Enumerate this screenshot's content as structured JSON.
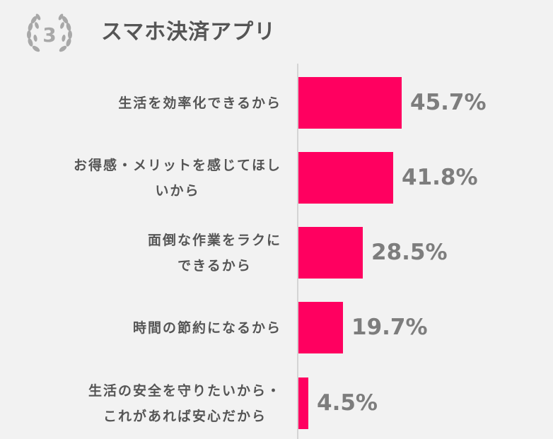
{
  "header": {
    "rank": "3",
    "title": "スマホ決済アプリ"
  },
  "colors": {
    "bar": "#ff0060",
    "background": "#f2f2f2",
    "label_text": "#555555",
    "value_text": "#7d7d7d",
    "badge": "#a8a8a8"
  },
  "chart_data": {
    "type": "bar",
    "orientation": "horizontal",
    "title": "スマホ決済アプリ",
    "categories": [
      "生活を効率化できるから",
      "お得感・メリットを感じてほしいから",
      "面倒な作業をラクにできるから",
      "時間の節約になるから",
      "生活の安全を守りたいから・これがあれば安心だから"
    ],
    "values": [
      45.7,
      41.8,
      28.5,
      19.7,
      4.5
    ],
    "unit": "%",
    "xlabel": "",
    "ylabel": "",
    "grid": false,
    "legend": null
  },
  "rows": [
    {
      "lines": [
        "生活を効率化できるから"
      ],
      "value": 45.7,
      "value_label": "45.7%"
    },
    {
      "lines": [
        "お得感・メリットを感じてほし",
        "いから"
      ],
      "value": 41.8,
      "value_label": "41.8%"
    },
    {
      "lines": [
        "面倒な作業をラクに",
        "できるから"
      ],
      "value": 28.5,
      "value_label": "28.5%"
    },
    {
      "lines": [
        "時間の節約になるから"
      ],
      "value": 19.7,
      "value_label": "19.7%"
    },
    {
      "lines": [
        "生活の安全を守りたいから・",
        "これがあれば安心だから"
      ],
      "value": 4.5,
      "value_label": "4.5%"
    }
  ]
}
